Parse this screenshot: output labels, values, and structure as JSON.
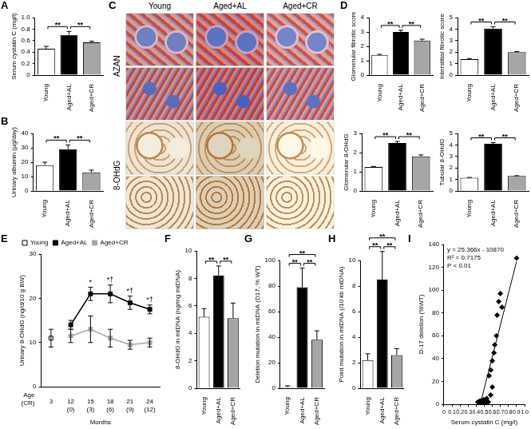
{
  "image_panel": {
    "panel": "C",
    "columns": [
      "Young",
      "Aged+AL",
      "Aged+CR"
    ],
    "rows": [
      "AZAN",
      "8-OHdG"
    ]
  },
  "chart_data": [
    {
      "panel": "A",
      "type": "bar",
      "ylabel": "Serum cystatin C (mg/l)",
      "categories": [
        "Young",
        "Aged+AL",
        "Aged+CR"
      ],
      "values": [
        0.46,
        0.7,
        0.57
      ],
      "errors": [
        0.04,
        0.06,
        0.02
      ],
      "colors": [
        "#ffffff",
        "#000000",
        "#a6a6a6"
      ],
      "ylim": [
        0,
        1
      ],
      "yticks": [
        0,
        0.2,
        0.4,
        0.6,
        0.8,
        {
          "value": 1,
          "label": "1.0"
        }
      ],
      "grid": false,
      "comparisons": [
        {
          "from": 0,
          "to": 1,
          "label": "**"
        },
        {
          "from": 1,
          "to": 2,
          "label": "**"
        }
      ]
    },
    {
      "panel": "B",
      "type": "bar",
      "ylabel": "Urinary albumin (μg/day)",
      "categories": [
        "Young",
        "Aged+AL",
        "Aged+CR"
      ],
      "values": [
        18,
        29,
        13
      ],
      "errors": [
        2,
        3,
        1.5
      ],
      "colors": [
        "#ffffff",
        "#000000",
        "#a6a6a6"
      ],
      "ylim": [
        0,
        40
      ],
      "yticks": [
        0,
        10,
        20,
        30,
        40
      ],
      "grid": false,
      "comparisons": [
        {
          "from": 0,
          "to": 1,
          "label": "**"
        },
        {
          "from": 1,
          "to": 2,
          "label": "**"
        }
      ]
    },
    {
      "panel": "D",
      "type": "bar",
      "ylabel": "Glomerular fibrotic score",
      "categories": [
        "Young",
        "Aged+AL",
        "Aged+CR"
      ],
      "values": [
        1.4,
        3.0,
        2.4
      ],
      "errors": [
        0.05,
        0.12,
        0.1
      ],
      "colors": [
        "#ffffff",
        "#000000",
        "#a6a6a6"
      ],
      "ylim": [
        0,
        4
      ],
      "yticks": [
        0,
        1,
        2,
        3,
        4
      ],
      "grid": false,
      "comparisons": [
        {
          "from": 0,
          "to": 1,
          "label": "**"
        },
        {
          "from": 1,
          "to": 2,
          "label": "**"
        }
      ]
    },
    {
      "type": "bar",
      "ylabel": "Interstitial fibrotic score",
      "categories": [
        "Young",
        "Aged+AL",
        "Aged+CR"
      ],
      "values": [
        1.4,
        4.05,
        2.0
      ],
      "errors": [
        0.05,
        0.15,
        0.05
      ],
      "colors": [
        "#ffffff",
        "#000000",
        "#a6a6a6"
      ],
      "ylim": [
        0,
        5
      ],
      "yticks": [
        0,
        1,
        2,
        3,
        4,
        5
      ],
      "grid": false,
      "comparisons": [
        {
          "from": 0,
          "to": 1,
          "label": "**"
        },
        {
          "from": 1,
          "to": 2,
          "label": "**"
        }
      ]
    },
    {
      "type": "bar",
      "ylabel": "Glomerular 8-OHdG",
      "categories": [
        "Young",
        "Aged+AL",
        "Aged+CR"
      ],
      "values": [
        1.25,
        2.5,
        1.8
      ],
      "errors": [
        0.03,
        0.08,
        0.08
      ],
      "colors": [
        "#ffffff",
        "#000000",
        "#a6a6a6"
      ],
      "ylim": [
        0,
        3
      ],
      "yticks": [
        0,
        1,
        2,
        3
      ],
      "grid": false,
      "comparisons": [
        {
          "from": 0,
          "to": 1,
          "label": "**"
        },
        {
          "from": 1,
          "to": 2,
          "label": "**"
        }
      ]
    },
    {
      "type": "bar",
      "ylabel": "Tubular 8-OHdG",
      "categories": [
        "Young",
        "Aged+AL",
        "Aged+CR"
      ],
      "values": [
        1.15,
        4.1,
        1.3
      ],
      "errors": [
        0.03,
        0.1,
        0.03
      ],
      "colors": [
        "#ffffff",
        "#000000",
        "#a6a6a6"
      ],
      "ylim": [
        0,
        5
      ],
      "yticks": [
        0,
        1,
        2,
        3,
        4,
        5
      ],
      "grid": false,
      "comparisons": [
        {
          "from": 0,
          "to": 1,
          "label": "**"
        },
        {
          "from": 1,
          "to": 2,
          "label": "**"
        }
      ]
    },
    {
      "panel": "E",
      "type": "line",
      "ylabel": "Urinary 8-OHdG (ng/d/10 g BW)",
      "xlabel": "Months",
      "x_row_labels": [
        "Age",
        "(CR)"
      ],
      "categories": [
        "3",
        "12",
        "15",
        "18",
        "21",
        "24"
      ],
      "cr_labels": [
        null,
        "(0)",
        "(3)",
        "(6)",
        "(9)",
        "(12)"
      ],
      "ylim": [
        0,
        30
      ],
      "yticks": [
        0,
        10,
        20,
        30
      ],
      "grid": false,
      "legend": "upper left",
      "series": [
        {
          "name": "Young",
          "color": "#000000",
          "marker": "open_square",
          "line_style": "none",
          "values": [
            11,
            null,
            null,
            null,
            null,
            null
          ],
          "errors": [
            2,
            null,
            null,
            null,
            null,
            null
          ]
        },
        {
          "name": "Aged+AL",
          "color": "#000000",
          "marker": "square",
          "line_style": "solid",
          "values": [
            null,
            14,
            21,
            21,
            19,
            17.5
          ],
          "errors": [
            null,
            1,
            1.5,
            2,
            1.5,
            1
          ],
          "annotations": [
            null,
            null,
            "*",
            "*†",
            "*†",
            "*†"
          ]
        },
        {
          "name": "Aged+CR",
          "color": "#a6a6a6",
          "marker": "square",
          "line_style": "solid",
          "values": [
            null,
            11.5,
            13,
            11,
            9.5,
            10
          ],
          "errors": [
            null,
            1.5,
            3,
            2,
            1,
            1
          ]
        }
      ]
    },
    {
      "panel": "F",
      "type": "bar",
      "ylabel": "8-OHdG in mtDNA (ng/mg mtDNA)",
      "categories": [
        "Young",
        "Aged+AL",
        "Aged+CR"
      ],
      "values": [
        5.2,
        8.2,
        5.1
      ],
      "errors": [
        0.6,
        0.7,
        1.1
      ],
      "colors": [
        "#ffffff",
        "#000000",
        "#a6a6a6"
      ],
      "ylim": [
        0,
        10
      ],
      "yticks": [
        0,
        2,
        4,
        6,
        8,
        10
      ],
      "grid": false,
      "comparisons": [
        {
          "from": 0,
          "to": 1,
          "label": "**"
        },
        {
          "from": 1,
          "to": 2,
          "label": "**"
        }
      ]
    },
    {
      "panel": "G",
      "type": "bar",
      "ylabel": "Deletion mutation in mtDNA (D17, % WT)",
      "categories": [
        "Young",
        "Aged+AL",
        "Aged+CR"
      ],
      "values": [
        1,
        79,
        38
      ],
      "errors": [
        1,
        15,
        7
      ],
      "colors": [
        "#ffffff",
        "#000000",
        "#a6a6a6"
      ],
      "ylim": [
        0,
        100
      ],
      "yticks": [
        0,
        20,
        40,
        60,
        80,
        100
      ],
      "grid": false,
      "comparisons": [
        {
          "from": 0,
          "to": 1,
          "label": "**"
        },
        {
          "from": 1,
          "to": 2,
          "label": "**"
        },
        {
          "from": 0,
          "to": 2,
          "label": "**"
        }
      ]
    },
    {
      "panel": "H",
      "type": "bar",
      "ylabel": "Point mutation in mtDNA (/10 kb mtDNA)",
      "categories": [
        "Young",
        "Aged+AL",
        "Aged+CR"
      ],
      "values": [
        2.2,
        8.5,
        2.6
      ],
      "errors": [
        0.5,
        2.2,
        0.5
      ],
      "colors": [
        "#ffffff",
        "#000000",
        "#a6a6a6"
      ],
      "ylim": [
        0,
        10
      ],
      "yticks": [
        0,
        2,
        4,
        6,
        8,
        10
      ],
      "grid": false,
      "comparisons": [
        {
          "from": 0,
          "to": 1,
          "label": "**"
        },
        {
          "from": 1,
          "to": 2,
          "label": "**"
        },
        {
          "from": 0,
          "to": 2,
          "label": "**"
        }
      ]
    },
    {
      "panel": "I",
      "type": "scatter",
      "ylabel": "D-17 deletion (%WT)",
      "xlabel": "Serum cystatin C (mg/l)",
      "color": "#000000",
      "marker": "diamond",
      "grid": false,
      "annotations": [
        "y = 25.366x - 10870",
        "R² = 0.7175",
        "P < 0.01"
      ],
      "x": [
        0.42,
        0.44,
        0.45,
        0.46,
        0.47,
        0.48,
        0.49,
        0.5,
        0.51,
        0.52,
        0.53,
        0.55,
        0.56,
        0.58,
        0.6,
        0.62,
        0.63,
        0.65,
        0.66,
        0.68,
        0.7,
        0.72,
        0.58,
        0.6,
        0.9
      ],
      "values": [
        2,
        1,
        3,
        1,
        2,
        1,
        4,
        2,
        1,
        3,
        5,
        2,
        25,
        30,
        38,
        45,
        52,
        60,
        78,
        90,
        97,
        85,
        8,
        15,
        128
      ],
      "fit_line": {
        "x": [
          0.45,
          0.9
        ],
        "values": [
          0,
          125
        ]
      },
      "xlim": [
        0,
        1
      ],
      "xticks": [
        0,
        0.1,
        0.2,
        0.3,
        0.4,
        0.5,
        0.6,
        0.7,
        0.8,
        0.9,
        {
          "value": 1,
          "label": "1.0"
        }
      ],
      "ylim": [
        0,
        140
      ],
      "yticks": [
        0,
        20,
        40,
        60,
        80,
        100,
        120,
        140
      ]
    }
  ]
}
